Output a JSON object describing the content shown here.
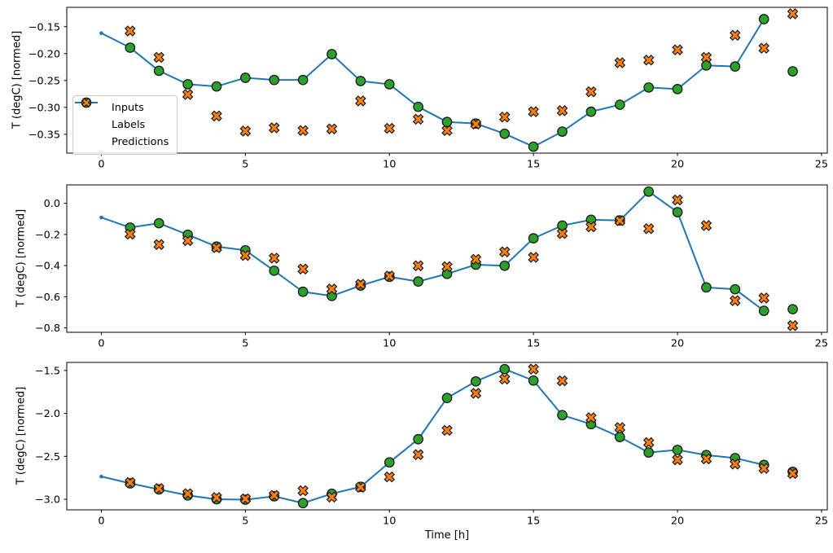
{
  "figure": {
    "background": "#ffffff",
    "xlabel": "Time [h]",
    "ylabel": "T (degC) [normed]",
    "marker_edge_color": "#1a1a1a",
    "axis_color": "#000000",
    "legend": {
      "edge_color": "#cccccc",
      "entries": [
        {
          "label": "Inputs",
          "marker": "line-dot",
          "color": "#1f77b4"
        },
        {
          "label": "Labels",
          "marker": "circle",
          "color": "#2ca02c"
        },
        {
          "label": "Predictions",
          "marker": "x",
          "color": "#ff7f0e"
        }
      ]
    }
  },
  "chart_data": [
    {
      "type": "line",
      "title": "",
      "xlabel": "",
      "ylabel": "T (degC) [normed]",
      "grid": false,
      "legend_position": "center left of first subplot",
      "xlim": [
        -1.2,
        25.2
      ],
      "ylim": [
        -0.385,
        -0.114
      ],
      "xticks": [
        0,
        5,
        10,
        15,
        20,
        25
      ],
      "xtick_labels": [
        "0",
        "5",
        "10",
        "15",
        "20",
        "25"
      ],
      "yticks": [
        -0.15,
        -0.2,
        -0.25,
        -0.3,
        -0.35
      ],
      "ytick_labels": [
        "−0.15",
        "−0.20",
        "−0.25",
        "−0.30",
        "−0.35"
      ],
      "series": [
        {
          "name": "Inputs",
          "type": "line-dot",
          "x": [
            0,
            1,
            2,
            3,
            4,
            5,
            6,
            7,
            8,
            9,
            10,
            11,
            12,
            13,
            14,
            15,
            16,
            17,
            18,
            19,
            20,
            21,
            22,
            23
          ],
          "values": [
            -0.162,
            -0.189,
            -0.232,
            -0.257,
            -0.261,
            -0.245,
            -0.249,
            -0.249,
            -0.201,
            -0.251,
            -0.257,
            -0.299,
            -0.327,
            -0.33,
            -0.349,
            -0.373,
            -0.345,
            -0.308,
            -0.295,
            -0.263,
            -0.266,
            -0.222,
            -0.224,
            -0.136
          ]
        },
        {
          "name": "Labels",
          "type": "scatter-circle",
          "x": [
            1,
            2,
            3,
            4,
            5,
            6,
            7,
            8,
            9,
            10,
            11,
            12,
            13,
            14,
            15,
            16,
            17,
            18,
            19,
            20,
            21,
            22,
            23,
            24
          ],
          "values": [
            -0.189,
            -0.232,
            -0.257,
            -0.261,
            -0.245,
            -0.249,
            -0.249,
            -0.201,
            -0.251,
            -0.257,
            -0.299,
            -0.327,
            -0.33,
            -0.349,
            -0.373,
            -0.345,
            -0.308,
            -0.295,
            -0.263,
            -0.266,
            -0.222,
            -0.224,
            -0.136,
            -0.233
          ]
        },
        {
          "name": "Predictions",
          "type": "scatter-x",
          "x": [
            1,
            2,
            3,
            4,
            5,
            6,
            7,
            8,
            9,
            10,
            11,
            12,
            13,
            14,
            15,
            16,
            17,
            18,
            19,
            20,
            21,
            22,
            23,
            24
          ],
          "values": [
            -0.158,
            -0.207,
            -0.276,
            -0.316,
            -0.344,
            -0.338,
            -0.343,
            -0.34,
            -0.288,
            -0.339,
            -0.322,
            -0.343,
            -0.331,
            -0.318,
            -0.308,
            -0.306,
            -0.271,
            -0.217,
            -0.212,
            -0.193,
            -0.207,
            -0.166,
            -0.19,
            -0.126
          ]
        }
      ]
    },
    {
      "type": "line",
      "title": "",
      "xlabel": "",
      "ylabel": "T (degC) [normed]",
      "grid": false,
      "xlim": [
        -1.2,
        25.2
      ],
      "ylim": [
        -0.828,
        0.118
      ],
      "xticks": [
        0,
        5,
        10,
        15,
        20,
        25
      ],
      "xtick_labels": [
        "0",
        "5",
        "10",
        "15",
        "20",
        "25"
      ],
      "yticks": [
        0.0,
        -0.2,
        -0.4,
        -0.6,
        -0.8
      ],
      "ytick_labels": [
        "0.0",
        "−0.2",
        "−0.4",
        "−0.6",
        "−0.8"
      ],
      "series": [
        {
          "name": "Inputs",
          "type": "line-dot",
          "x": [
            0,
            1,
            2,
            3,
            4,
            5,
            6,
            7,
            8,
            9,
            10,
            11,
            12,
            13,
            14,
            15,
            16,
            17,
            18,
            19,
            20,
            21,
            22,
            23
          ],
          "values": [
            -0.091,
            -0.156,
            -0.128,
            -0.202,
            -0.278,
            -0.302,
            -0.433,
            -0.568,
            -0.595,
            -0.528,
            -0.472,
            -0.502,
            -0.453,
            -0.394,
            -0.401,
            -0.225,
            -0.143,
            -0.106,
            -0.11,
            0.075,
            -0.057,
            -0.54,
            -0.552,
            -0.69
          ]
        },
        {
          "name": "Labels",
          "type": "scatter-circle",
          "x": [
            1,
            2,
            3,
            4,
            5,
            6,
            7,
            8,
            9,
            10,
            11,
            12,
            13,
            14,
            15,
            16,
            17,
            18,
            19,
            20,
            21,
            22,
            23,
            24
          ],
          "values": [
            -0.156,
            -0.128,
            -0.202,
            -0.278,
            -0.302,
            -0.433,
            -0.568,
            -0.595,
            -0.528,
            -0.472,
            -0.502,
            -0.453,
            -0.394,
            -0.401,
            -0.225,
            -0.143,
            -0.106,
            -0.11,
            0.075,
            -0.057,
            -0.54,
            -0.552,
            -0.69,
            -0.68
          ]
        },
        {
          "name": "Predictions",
          "type": "scatter-x",
          "x": [
            1,
            2,
            3,
            4,
            5,
            6,
            7,
            8,
            9,
            10,
            11,
            12,
            13,
            14,
            15,
            16,
            17,
            18,
            19,
            20,
            21,
            22,
            23,
            24
          ],
          "values": [
            -0.198,
            -0.265,
            -0.24,
            -0.285,
            -0.335,
            -0.352,
            -0.422,
            -0.55,
            -0.52,
            -0.467,
            -0.401,
            -0.407,
            -0.36,
            -0.312,
            -0.347,
            -0.194,
            -0.151,
            -0.112,
            -0.163,
            0.021,
            -0.143,
            -0.625,
            -0.608,
            -0.785
          ]
        }
      ]
    },
    {
      "type": "line",
      "title": "",
      "xlabel": "Time [h]",
      "ylabel": "T (degC) [normed]",
      "grid": false,
      "xlim": [
        -1.2,
        25.2
      ],
      "ylim": [
        -3.123,
        -1.406
      ],
      "xticks": [
        0,
        5,
        10,
        15,
        20,
        25
      ],
      "xtick_labels": [
        "0",
        "5",
        "10",
        "15",
        "20",
        "25"
      ],
      "yticks": [
        -1.5,
        -2.0,
        -2.5,
        -3.0
      ],
      "ytick_labels": [
        "−1.5",
        "−2.0",
        "−2.5",
        "−3.0"
      ],
      "series": [
        {
          "name": "Inputs",
          "type": "line-dot",
          "x": [
            0,
            1,
            2,
            3,
            4,
            5,
            6,
            7,
            8,
            9,
            10,
            11,
            12,
            13,
            14,
            15,
            16,
            17,
            18,
            19,
            20,
            21,
            22,
            23
          ],
          "values": [
            -2.735,
            -2.815,
            -2.885,
            -2.955,
            -3.0,
            -3.005,
            -2.965,
            -3.045,
            -2.935,
            -2.855,
            -2.57,
            -2.3,
            -1.82,
            -1.627,
            -1.484,
            -1.617,
            -2.02,
            -2.125,
            -2.275,
            -2.455,
            -2.425,
            -2.485,
            -2.52,
            -2.6
          ]
        },
        {
          "name": "Labels",
          "type": "scatter-circle",
          "x": [
            1,
            2,
            3,
            4,
            5,
            6,
            7,
            8,
            9,
            10,
            11,
            12,
            13,
            14,
            15,
            16,
            17,
            18,
            19,
            20,
            21,
            22,
            23,
            24
          ],
          "values": [
            -2.815,
            -2.885,
            -2.955,
            -3.0,
            -3.005,
            -2.965,
            -3.045,
            -2.935,
            -2.855,
            -2.57,
            -2.3,
            -1.82,
            -1.627,
            -1.484,
            -1.617,
            -2.02,
            -2.125,
            -2.275,
            -2.455,
            -2.425,
            -2.485,
            -2.52,
            -2.6,
            -2.68
          ]
        },
        {
          "name": "Predictions",
          "type": "scatter-x",
          "x": [
            1,
            2,
            3,
            4,
            5,
            6,
            7,
            8,
            9,
            10,
            11,
            12,
            13,
            14,
            15,
            16,
            17,
            18,
            19,
            20,
            21,
            22,
            23,
            24
          ],
          "values": [
            -2.805,
            -2.875,
            -2.935,
            -2.98,
            -2.995,
            -2.955,
            -2.9,
            -2.975,
            -2.86,
            -2.74,
            -2.48,
            -2.197,
            -1.766,
            -1.6,
            -1.484,
            -1.62,
            -2.05,
            -2.165,
            -2.34,
            -2.54,
            -2.53,
            -2.59,
            -2.64,
            -2.7
          ]
        }
      ]
    }
  ]
}
